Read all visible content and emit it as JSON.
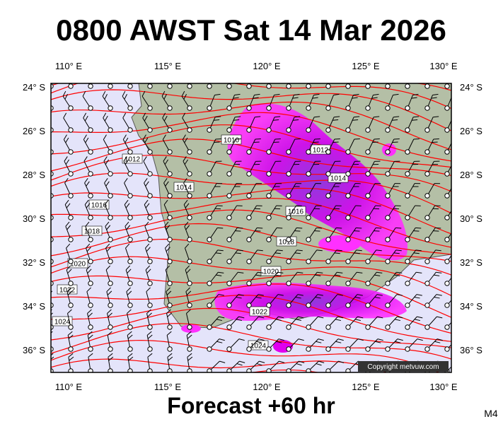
{
  "header": {
    "title": "0800 AWST Sat 14 Mar 2026"
  },
  "footer": {
    "subtitle": "Forecast +60 hr",
    "model": "M4"
  },
  "map": {
    "lon_labels": [
      "110° E",
      "115° E",
      "120° E",
      "125° E",
      "130° E"
    ],
    "lat_labels": [
      "24° S",
      "26° S",
      "28° S",
      "30° S",
      "32° S",
      "34° S",
      "36° S"
    ],
    "isobar_labels": [
      "1010",
      "1012",
      "1012",
      "1014",
      "1014",
      "1016",
      "1016",
      "1018",
      "1018",
      "1020",
      "1020",
      "1022",
      "1022",
      "1024",
      "1024"
    ],
    "copyright": "Copyright metvuw.com"
  }
}
